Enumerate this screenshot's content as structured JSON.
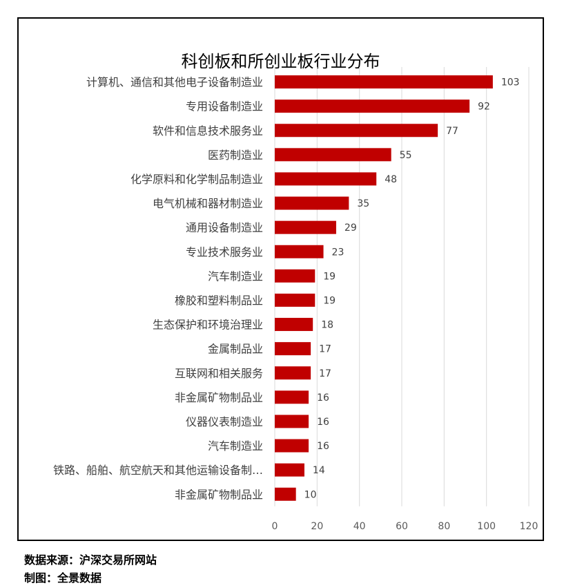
{
  "chart_data": {
    "type": "bar",
    "orientation": "horizontal",
    "title": "科创板和所创业板行业分布",
    "categories": [
      "计算机、通信和其他电子设备制造业",
      "专用设备制造业",
      "软件和信息技术服务业",
      "医药制造业",
      "化学原料和化学制品制造业",
      "电气机械和器材制造业",
      "通用设备制造业",
      "专业技术服务业",
      "汽车制造业",
      "橡胶和塑料制品业",
      "生态保护和环境治理业",
      "金属制品业",
      "互联网和相关服务",
      "非金属矿物制品业",
      "仪器仪表制造业",
      "汽车制造业",
      "铁路、船舶、航空航天和其他运输设备制…",
      "非金属矿物制品业"
    ],
    "values": [
      103,
      92,
      77,
      55,
      48,
      35,
      29,
      23,
      19,
      19,
      18,
      17,
      17,
      16,
      16,
      16,
      14,
      10
    ],
    "xlim": [
      0,
      120
    ],
    "xticks": [
      0,
      20,
      40,
      60,
      80,
      100,
      120
    ],
    "grid": true,
    "legend": "none",
    "bar_color": "#c00000"
  },
  "footer": {
    "source": "数据来源：沪深交易所网站",
    "credit": "制图：全景数据"
  }
}
